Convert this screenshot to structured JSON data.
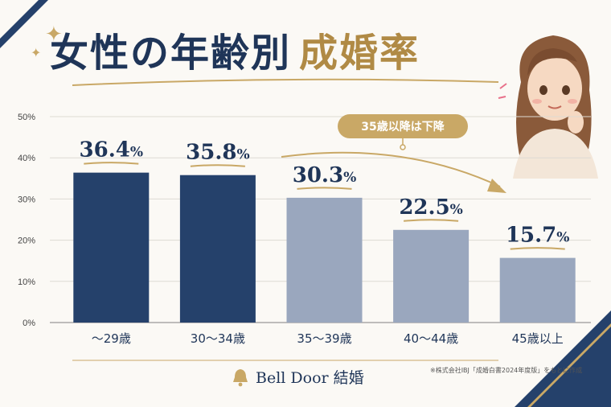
{
  "title": {
    "part1": "女性の年齢別",
    "part2": "成婚率"
  },
  "annotation": "35歳以降は下降",
  "brand": {
    "name": "Bell Door 結婚",
    "icon": "bell-icon"
  },
  "source_note": "※株式会社IBJ「成婚白書2024年度版」をもとに作成",
  "colors": {
    "navy": "#25416b",
    "gray": "#9aa7be",
    "gold": "#c9a866",
    "text": "#1f3558"
  },
  "chart_data": {
    "type": "bar",
    "categories": [
      "～29歳",
      "30～34歳",
      "35～39歳",
      "40～44歳",
      "45歳以上"
    ],
    "values": [
      36.4,
      35.8,
      30.3,
      22.5,
      15.7
    ],
    "value_labels": [
      "36.4",
      "35.8",
      "30.3",
      "22.5",
      "15.7"
    ],
    "value_unit": "%",
    "bar_colors": [
      "#25416b",
      "#25416b",
      "#9aa7be",
      "#9aa7be",
      "#9aa7be"
    ],
    "yticks": [
      "0%",
      "10%",
      "20%",
      "30%",
      "40%",
      "50%"
    ],
    "ylim": [
      0,
      50
    ],
    "grid": true
  }
}
